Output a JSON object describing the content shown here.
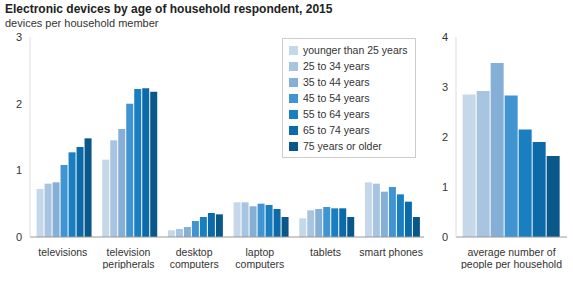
{
  "chart_data": [
    {
      "type": "bar",
      "title": "Electronic devices by age of household respondent, 2015",
      "subtitle": "devices per household member",
      "categories": [
        "televisions",
        "television peripherals",
        "desktop computers",
        "laptop computers",
        "tablets",
        "smart phones"
      ],
      "series": [
        {
          "name": "younger than 25 years",
          "color": "#c5d8ea",
          "values": [
            0.72,
            1.16,
            0.1,
            0.52,
            0.28,
            0.82
          ]
        },
        {
          "name": "25 to 34 years",
          "color": "#a7c4e0",
          "values": [
            0.8,
            1.45,
            0.12,
            0.52,
            0.4,
            0.8
          ]
        },
        {
          "name": "35 to 44 years",
          "color": "#86afd6",
          "values": [
            0.82,
            1.62,
            0.15,
            0.46,
            0.42,
            0.68
          ]
        },
        {
          "name": "45 to 54 years",
          "color": "#3f94d1",
          "values": [
            1.08,
            2.0,
            0.24,
            0.5,
            0.45,
            0.75
          ]
        },
        {
          "name": "55 to 64 years",
          "color": "#1a7fc1",
          "values": [
            1.27,
            2.22,
            0.3,
            0.48,
            0.43,
            0.64
          ]
        },
        {
          "name": "65 to 74 years",
          "color": "#0d6aa8",
          "values": [
            1.35,
            2.23,
            0.36,
            0.42,
            0.43,
            0.53
          ]
        },
        {
          "name": "75 years or older",
          "color": "#0a5889",
          "values": [
            1.48,
            2.18,
            0.34,
            0.3,
            0.3,
            0.3
          ]
        }
      ],
      "ylim": [
        0,
        3
      ],
      "yticks": [
        0,
        1,
        2,
        3
      ],
      "legend": "upper right"
    },
    {
      "type": "bar",
      "categories": [
        "average number of people per household"
      ],
      "series": [
        {
          "name": "younger than 25 years",
          "color": "#c5d8ea",
          "values": [
            2.85
          ]
        },
        {
          "name": "25 to 34 years",
          "color": "#a7c4e0",
          "values": [
            2.92
          ]
        },
        {
          "name": "35 to 44 years",
          "color": "#86afd6",
          "values": [
            3.48
          ]
        },
        {
          "name": "45 to 54 years",
          "color": "#3f94d1",
          "values": [
            2.83
          ]
        },
        {
          "name": "55 to 64 years",
          "color": "#1a7fc1",
          "values": [
            2.15
          ]
        },
        {
          "name": "65 to 74 years",
          "color": "#0d6aa8",
          "values": [
            1.9
          ]
        },
        {
          "name": "75 years or older",
          "color": "#0a5889",
          "values": [
            1.62
          ]
        }
      ],
      "ylim": [
        0,
        4
      ],
      "yticks": [
        0,
        1,
        2,
        3,
        4
      ]
    }
  ]
}
